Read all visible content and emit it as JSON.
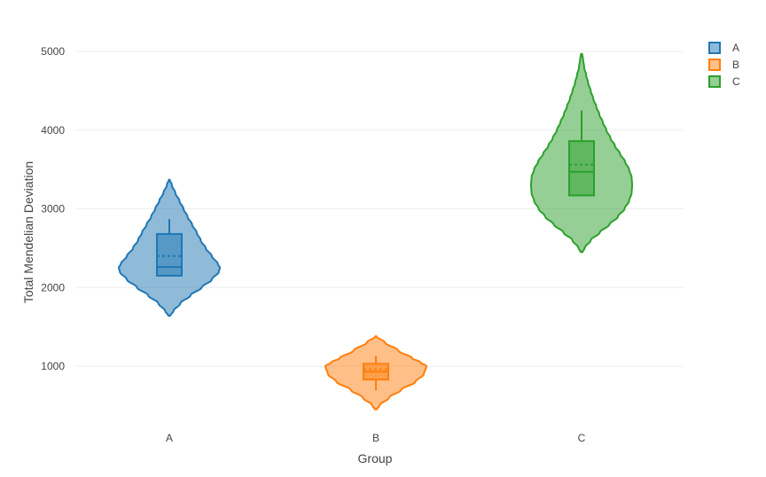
{
  "chart_data": {
    "type": "violin",
    "xlabel": "Group",
    "ylabel": "Total Mendelian Deviation",
    "ylim": [
      130,
      5400
    ],
    "yticks": [
      1000,
      2000,
      3000,
      4000,
      5000
    ],
    "ytick_labels": [
      "1000",
      "2000",
      "3000",
      "4000",
      "5000"
    ],
    "grid": true,
    "legend_position": "top-right",
    "inner": "box with dashed mean line",
    "categories": [
      "A",
      "B",
      "C"
    ],
    "series": [
      {
        "name": "A",
        "color": "#1f77b4",
        "fill": "rgba(31,119,180,0.5)",
        "violin_min": 1640,
        "violin_max": 3370,
        "box": {
          "whisker_low": 2140,
          "q1": 2150,
          "median": 2260,
          "q3": 2680,
          "whisker_high": 2870,
          "mean": 2400
        },
        "density": [
          [
            1640,
            0.02
          ],
          [
            1700,
            0.08
          ],
          [
            1800,
            0.22
          ],
          [
            1900,
            0.42
          ],
          [
            2000,
            0.64
          ],
          [
            2100,
            0.84
          ],
          [
            2200,
            0.98
          ],
          [
            2250,
            1.0
          ],
          [
            2300,
            0.96
          ],
          [
            2400,
            0.84
          ],
          [
            2500,
            0.72
          ],
          [
            2600,
            0.62
          ],
          [
            2700,
            0.54
          ],
          [
            2800,
            0.45
          ],
          [
            2900,
            0.36
          ],
          [
            3000,
            0.28
          ],
          [
            3100,
            0.2
          ],
          [
            3200,
            0.12
          ],
          [
            3300,
            0.05
          ],
          [
            3370,
            0.01
          ]
        ]
      },
      {
        "name": "B",
        "color": "#ff7f0e",
        "fill": "rgba(255,127,14,0.5)",
        "violin_min": 450,
        "violin_max": 1380,
        "box": {
          "whisker_low": 690,
          "q1": 830,
          "median": 930,
          "q3": 1030,
          "whisker_high": 1130,
          "mean": 960
        },
        "density": [
          [
            450,
            0.02
          ],
          [
            500,
            0.07
          ],
          [
            600,
            0.26
          ],
          [
            700,
            0.5
          ],
          [
            800,
            0.78
          ],
          [
            900,
            0.95
          ],
          [
            1000,
            1.0
          ],
          [
            1050,
            0.88
          ],
          [
            1100,
            0.72
          ],
          [
            1200,
            0.44
          ],
          [
            1300,
            0.18
          ],
          [
            1380,
            0.01
          ]
        ]
      },
      {
        "name": "C",
        "color": "#2ca02c",
        "fill": "rgba(44,160,44,0.5)",
        "violin_min": 2450,
        "violin_max": 4970,
        "box": {
          "whisker_low": 3170,
          "q1": 3170,
          "median": 3470,
          "q3": 3860,
          "whisker_high": 4250,
          "mean": 3560
        },
        "density": [
          [
            2450,
            0.02
          ],
          [
            2500,
            0.06
          ],
          [
            2600,
            0.18
          ],
          [
            2700,
            0.36
          ],
          [
            2800,
            0.55
          ],
          [
            2900,
            0.72
          ],
          [
            3000,
            0.85
          ],
          [
            3100,
            0.94
          ],
          [
            3200,
            0.99
          ],
          [
            3300,
            1.0
          ],
          [
            3400,
            0.99
          ],
          [
            3500,
            0.94
          ],
          [
            3600,
            0.86
          ],
          [
            3700,
            0.76
          ],
          [
            3800,
            0.66
          ],
          [
            3900,
            0.57
          ],
          [
            4000,
            0.49
          ],
          [
            4100,
            0.42
          ],
          [
            4200,
            0.35
          ],
          [
            4300,
            0.29
          ],
          [
            4400,
            0.23
          ],
          [
            4500,
            0.18
          ],
          [
            4600,
            0.13
          ],
          [
            4700,
            0.09
          ],
          [
            4800,
            0.05
          ],
          [
            4900,
            0.03
          ],
          [
            4970,
            0.01
          ]
        ]
      }
    ]
  }
}
